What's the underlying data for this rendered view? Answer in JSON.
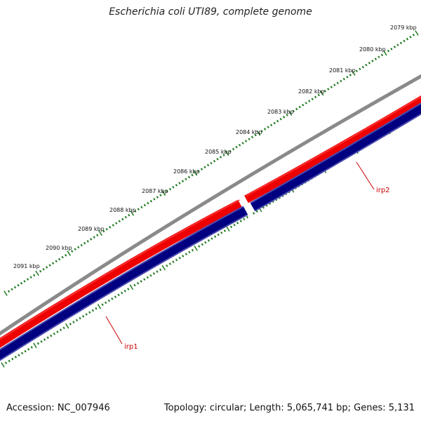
{
  "title": "Escherichia coli UTI89, complete genome",
  "footer": {
    "accession": "Accession: NC_007946",
    "summary": "Topology: circular; Length: 5,065,741 bp; Genes: 5,131"
  },
  "colors": {
    "backbone": "#8a8a8a",
    "forward_feature": "#ee0000",
    "reverse_feature": "#000080",
    "ticks": "#1f7a1f",
    "gene_label": "#cc0000"
  },
  "scale": {
    "labels": [
      "2079 kbp",
      "2080 kbp",
      "2081 kbp",
      "2082 kbp",
      "2083 kbp",
      "2084 kbp",
      "2085 kbp",
      "2086 kbp",
      "2087 kbp",
      "2088 kbp",
      "2089 kbp",
      "2090 kbp",
      "2091 kbp"
    ]
  },
  "genes": [
    {
      "name": "irp2",
      "strand": "forward"
    },
    {
      "name": "irp1",
      "strand": "forward"
    }
  ]
}
